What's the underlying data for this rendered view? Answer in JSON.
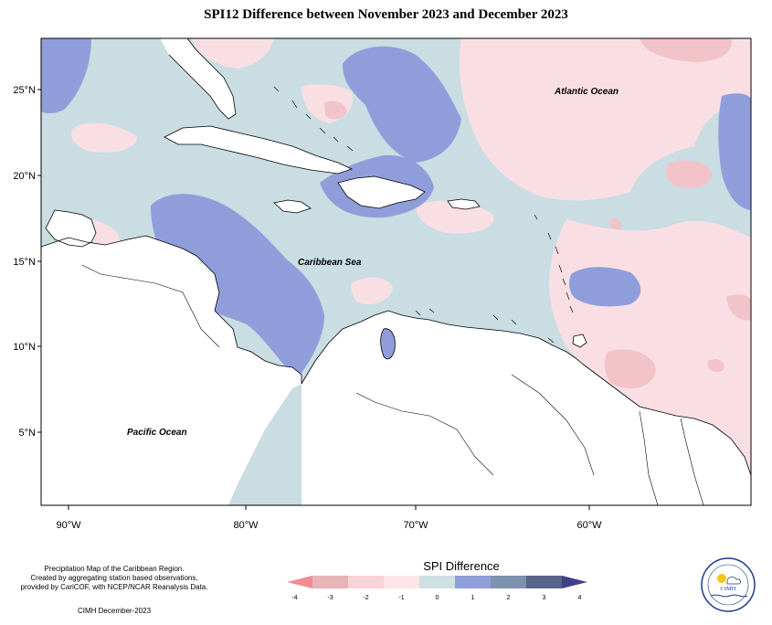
{
  "title": "SPI12 Difference between November 2023 and December 2023",
  "map": {
    "lat_ticks": [
      "25°N",
      "20°N",
      "15°N",
      "10°N",
      "5°N"
    ],
    "lon_ticks": [
      "90°W",
      "80°W",
      "70°W",
      "60°W"
    ],
    "labels": {
      "atlantic": "Atlantic Ocean",
      "caribbean": "Caribbean Sea",
      "pacific": "Pacific Ocean"
    },
    "colors": {
      "ocean_base": "#c9dde2",
      "light_pink": "#f9dfe3",
      "pink": "#f2c3c8",
      "deep_pink": "#e8a6ad",
      "blue": "#8f9edb",
      "steel_blue": "#7d93ad",
      "land": "#ffffff",
      "coast": "#000000"
    }
  },
  "legend": {
    "title": "SPI Difference",
    "ticks": [
      "-4",
      "-3",
      "-2",
      "-1",
      "0",
      "1",
      "2",
      "3",
      "4"
    ],
    "colors": [
      "#f28b92",
      "#e8b4b8",
      "#f7d2d6",
      "#fbe6e8",
      "#cfe0e3",
      "#8f9edb",
      "#7d93ad",
      "#5a6389",
      "#3f3f8a"
    ]
  },
  "footer": {
    "description": [
      "Precipitation Map of the Caribbean Region.",
      "Created by aggregating station based observations,",
      "provided by CariCOF, with NCEP/NCAR Reanalysis Data."
    ],
    "credit": "CIMH December-2023"
  },
  "logo": {
    "name": "CIMH"
  }
}
